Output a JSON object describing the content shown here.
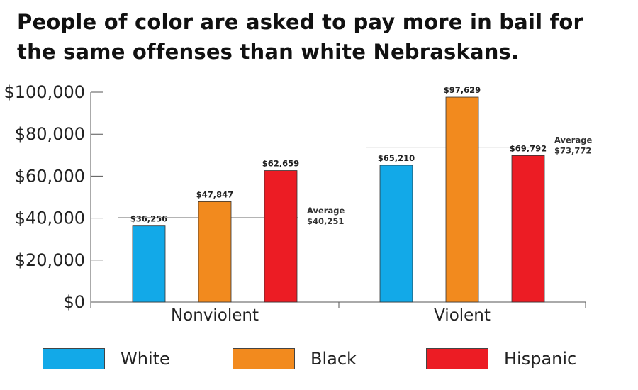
{
  "chart_data": {
    "type": "bar",
    "title": "People of color are asked to pay more in bail for the same offenses than white Nebraskans.",
    "categories": [
      "Nonviolent",
      "Violent"
    ],
    "series": [
      {
        "name": "White",
        "color": "#12a9e8",
        "values": [
          36256,
          65210
        ],
        "labels": [
          "$36,256",
          "$65,210"
        ]
      },
      {
        "name": "Black",
        "color": "#f28a1e",
        "values": [
          47847,
          97629
        ],
        "labels": [
          "$47,847",
          "$97,629"
        ]
      },
      {
        "name": "Hispanic",
        "color": "#ec1c24",
        "values": [
          62659,
          69792
        ],
        "labels": [
          "$62,659",
          "$69,792"
        ]
      }
    ],
    "averages": [
      {
        "category": "Nonviolent",
        "value": 40251,
        "title": "Average",
        "label": "$40,251"
      },
      {
        "category": "Violent",
        "value": 73772,
        "title": "Average",
        "label": "$73,772"
      }
    ],
    "ylim": [
      0,
      100000
    ],
    "yticks": [
      0,
      20000,
      40000,
      60000,
      80000,
      100000
    ],
    "ytick_labels": [
      "$0",
      "$20,000",
      "$40,000",
      "$60,000",
      "$80,000",
      "$100,000"
    ],
    "xlabel": "",
    "ylabel": "",
    "grid": false,
    "legend_position": "bottom"
  }
}
